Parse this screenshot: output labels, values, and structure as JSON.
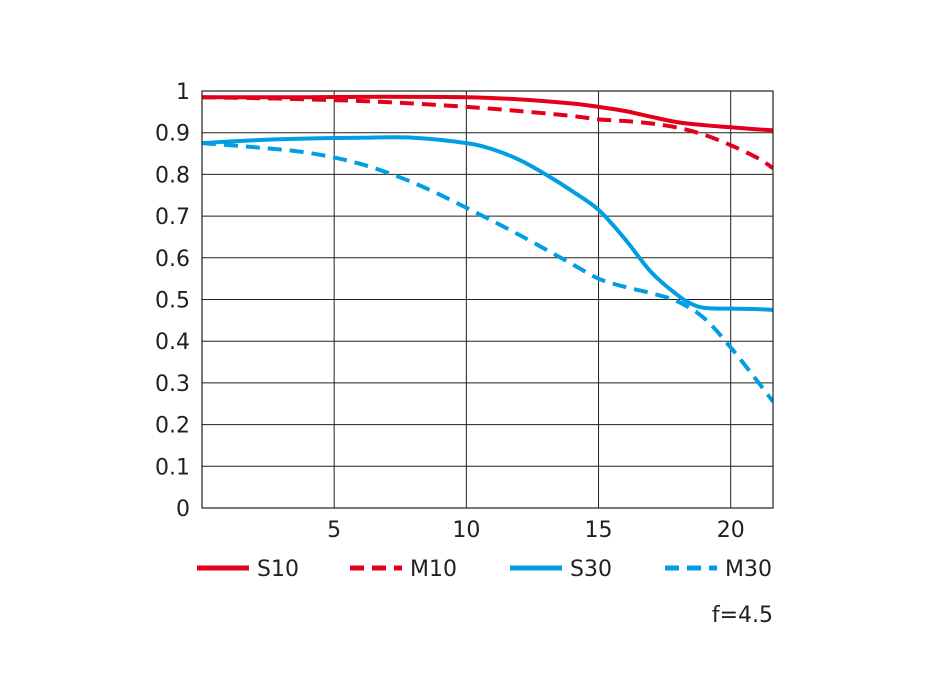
{
  "chart_data": {
    "type": "line",
    "title": "",
    "xlabel": "",
    "ylabel": "",
    "xlim": [
      0,
      21.6
    ],
    "ylim": [
      0,
      1
    ],
    "xticks": [
      5,
      10,
      15,
      20
    ],
    "yticks": [
      0,
      0.1,
      0.2,
      0.3,
      0.4,
      0.5,
      0.6,
      0.7,
      0.8,
      0.9,
      1
    ],
    "ytick_labels": [
      "0",
      "0.1",
      "0.2",
      "0.3",
      "0.4",
      "0.5",
      "0.6",
      "0.7",
      "0.8",
      "0.9",
      "1"
    ],
    "xtick_labels": [
      "5",
      "10",
      "15",
      "20"
    ],
    "grid": true,
    "legend_position": "bottom",
    "annotation": "f=4.5",
    "series": [
      {
        "name": "S10",
        "color": "#e3001b",
        "dash": "solid",
        "x": [
          0,
          2,
          4,
          6,
          8,
          10,
          12,
          14,
          15,
          16,
          17,
          18,
          19,
          20,
          21,
          21.6
        ],
        "y": [
          0.985,
          0.985,
          0.985,
          0.986,
          0.986,
          0.985,
          0.98,
          0.97,
          0.962,
          0.952,
          0.938,
          0.925,
          0.918,
          0.913,
          0.908,
          0.906
        ]
      },
      {
        "name": "M10",
        "color": "#e3001b",
        "dash": "dashed",
        "x": [
          0,
          2,
          4,
          6,
          8,
          10,
          12,
          14,
          15,
          16,
          17,
          18,
          19,
          20,
          21,
          21.6
        ],
        "y": [
          0.985,
          0.983,
          0.98,
          0.976,
          0.97,
          0.962,
          0.952,
          0.94,
          0.932,
          0.928,
          0.922,
          0.912,
          0.895,
          0.87,
          0.84,
          0.815
        ]
      },
      {
        "name": "S30",
        "color": "#009fe3",
        "dash": "solid",
        "x": [
          0,
          2,
          4,
          6,
          8,
          10,
          11,
          12,
          13,
          14,
          15,
          16,
          17,
          18,
          18.5,
          19,
          20,
          21,
          21.6
        ],
        "y": [
          0.875,
          0.882,
          0.886,
          0.888,
          0.888,
          0.875,
          0.86,
          0.835,
          0.8,
          0.76,
          0.715,
          0.645,
          0.565,
          0.51,
          0.49,
          0.48,
          0.478,
          0.477,
          0.475
        ]
      },
      {
        "name": "M30",
        "color": "#009fe3",
        "dash": "dashed",
        "x": [
          0,
          2,
          4,
          6,
          8,
          10,
          12,
          14,
          15,
          16,
          17,
          18,
          19,
          20,
          21,
          21.6
        ],
        "y": [
          0.875,
          0.865,
          0.852,
          0.825,
          0.78,
          0.72,
          0.655,
          0.585,
          0.55,
          0.53,
          0.515,
          0.495,
          0.455,
          0.385,
          0.305,
          0.255
        ]
      }
    ]
  }
}
